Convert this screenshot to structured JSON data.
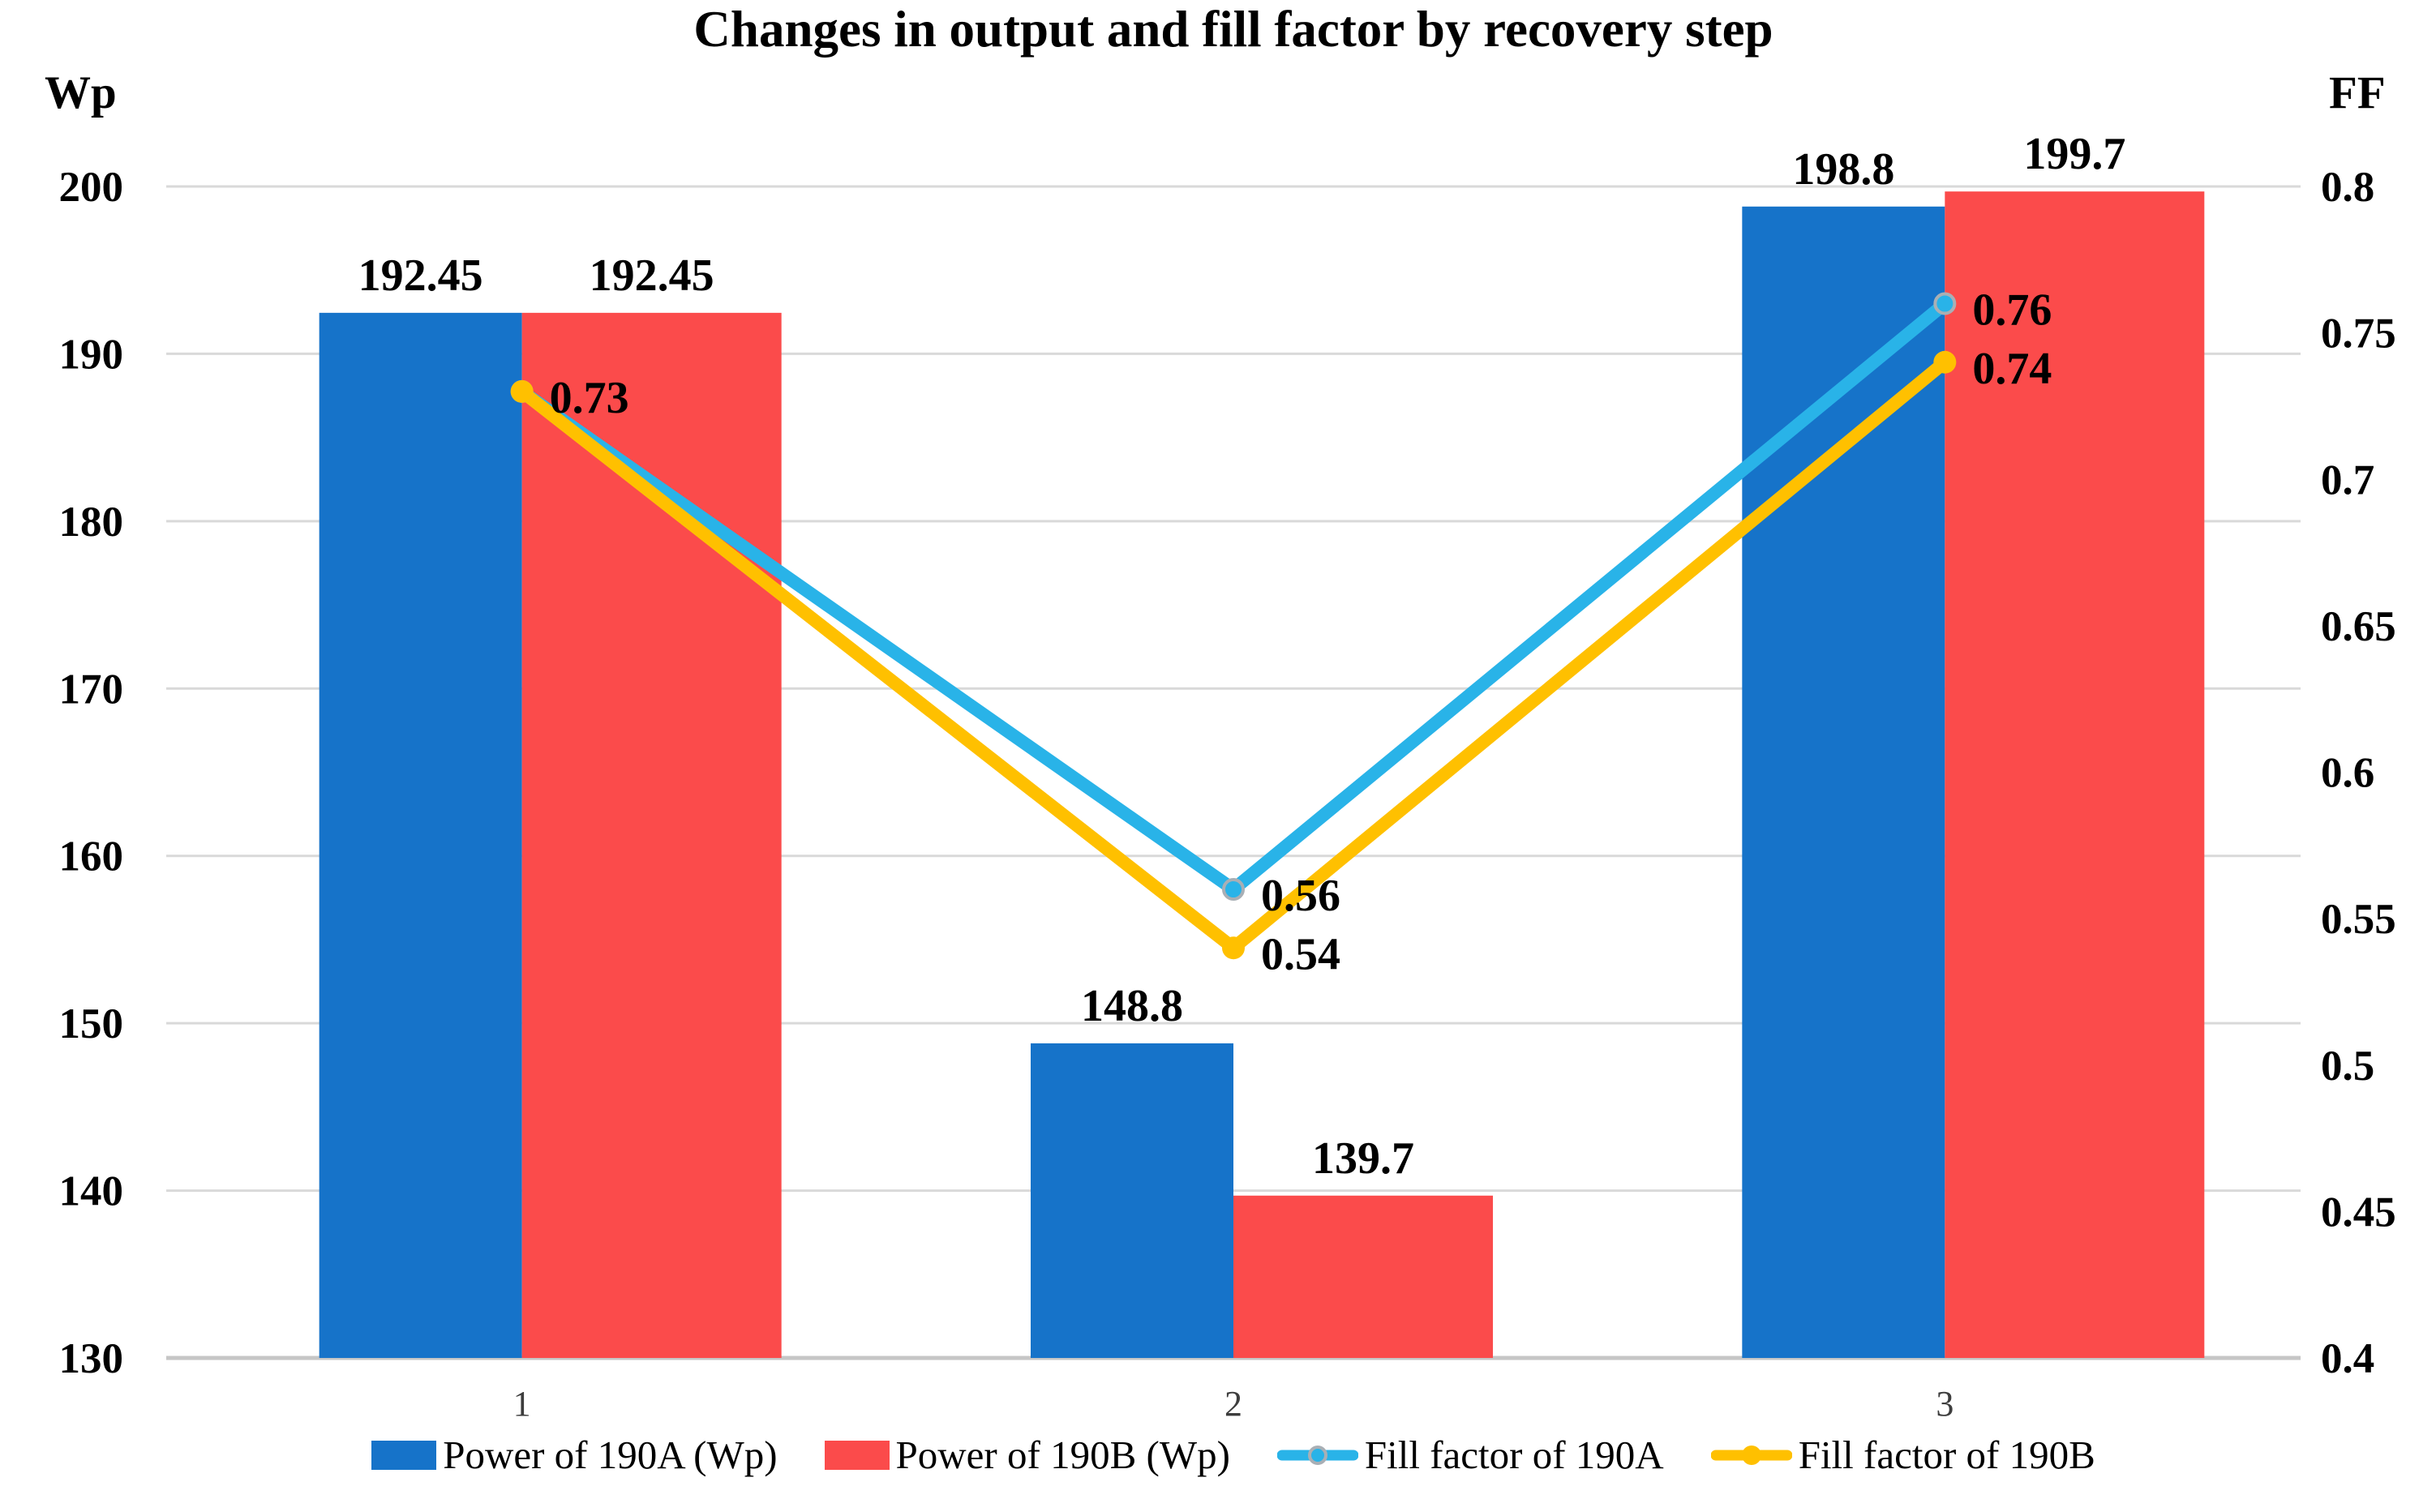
{
  "chart_data": {
    "type": "combo-bar-line",
    "title": "Changes in output and fill factor by recovery step",
    "categories": [
      "1",
      "2",
      "3"
    ],
    "left_axis": {
      "unit": "Wp",
      "min": 130,
      "max": 200,
      "tick_step": 10,
      "ticks": [
        "130",
        "140",
        "150",
        "160",
        "170",
        "180",
        "190",
        "200"
      ]
    },
    "right_axis": {
      "unit": "FF",
      "min": 0.4,
      "max": 0.8,
      "tick_step": 0.05,
      "ticks": [
        "0.4",
        "0.45",
        "0.5",
        "0.55",
        "0.6",
        "0.65",
        "0.7",
        "0.75",
        "0.8"
      ]
    },
    "grid": {
      "show": true,
      "gridline_color": "#D9D9D9",
      "axis_line_color": "#C6C6C6",
      "legend_position": "bottom"
    },
    "text_colors": {
      "labels": "#000000",
      "x_ticks": "#3D3D3D"
    },
    "series": [
      {
        "name": "Power of 190A (Wp)",
        "type": "bar",
        "axis": "left",
        "color": "#1673C9",
        "values": [
          192.45,
          148.8,
          198.8
        ],
        "labels": [
          "192.45",
          "148.8",
          "198.8"
        ]
      },
      {
        "name": "Power of 190B (Wp)",
        "type": "bar",
        "axis": "left",
        "color": "#FB4B4B",
        "values": [
          192.45,
          139.7,
          199.7
        ],
        "labels": [
          "192.45",
          "139.7",
          "199.7"
        ]
      },
      {
        "name": "Fill factor of 190A",
        "type": "line",
        "axis": "right",
        "color": "#29B3E8",
        "marker": "ring",
        "marker_ring_color": "#A9AFB5",
        "values": [
          0.73,
          0.56,
          0.76
        ],
        "labels": [
          "",
          "0.56",
          "0.76"
        ]
      },
      {
        "name": "Fill factor of 190B",
        "type": "line",
        "axis": "right",
        "color": "#FFC000",
        "marker": "solid",
        "values": [
          0.73,
          0.54,
          0.74
        ],
        "labels": [
          "0.73",
          "0.54",
          "0.74"
        ]
      }
    ]
  }
}
